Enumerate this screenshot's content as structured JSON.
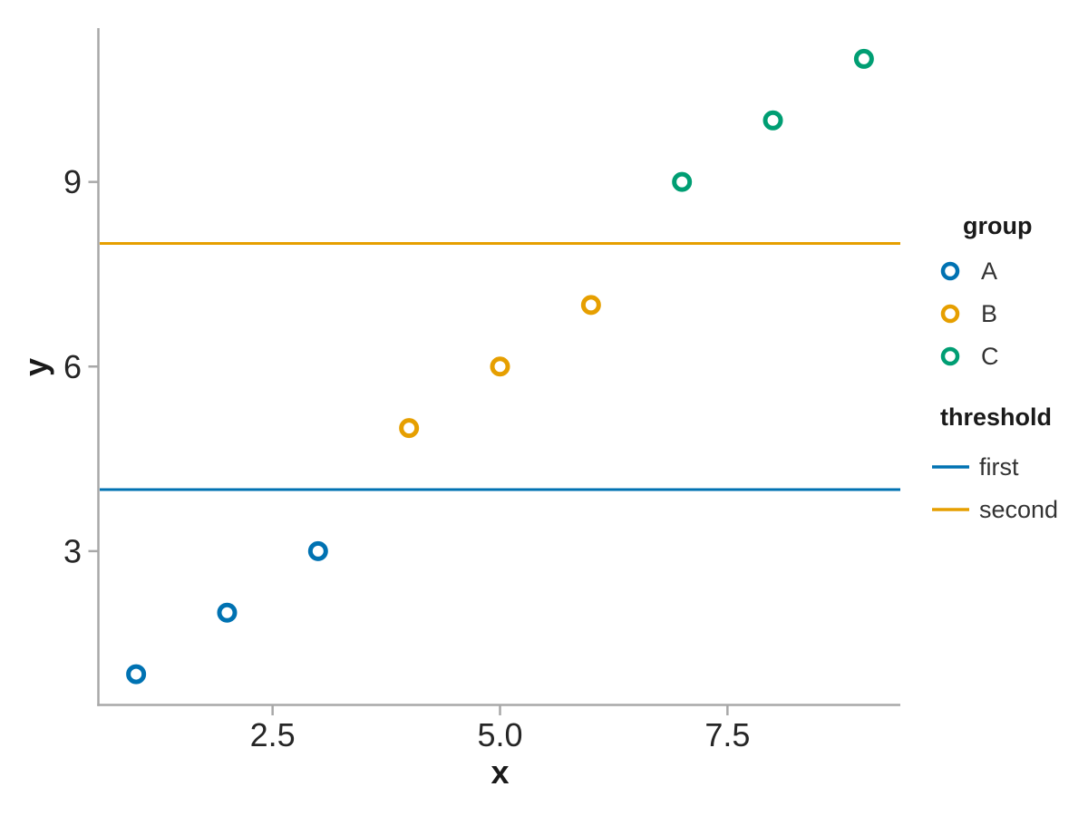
{
  "chart_data": {
    "type": "scatter",
    "title": "",
    "xlabel": "x",
    "ylabel": "y",
    "xlim": [
      0.6,
      9.4
    ],
    "ylim": [
      0.5,
      11.5
    ],
    "grid": false,
    "marker_style": "open-circle",
    "xticks": {
      "values": [
        2.5,
        5.0,
        7.5
      ],
      "labels": [
        "2.5",
        "5.0",
        "7.5"
      ]
    },
    "yticks": {
      "values": [
        3,
        6,
        9
      ],
      "labels": [
        "3",
        "6",
        "9"
      ]
    },
    "series": [
      {
        "name": "A",
        "color": "#0072b2",
        "points": [
          [
            1,
            1
          ],
          [
            2,
            2
          ],
          [
            3,
            3
          ]
        ]
      },
      {
        "name": "B",
        "color": "#e69f00",
        "points": [
          [
            4,
            5
          ],
          [
            5,
            6
          ],
          [
            6,
            7
          ]
        ]
      },
      {
        "name": "C",
        "color": "#009e73",
        "points": [
          [
            7,
            9
          ],
          [
            8,
            10
          ],
          [
            9,
            11
          ]
        ]
      }
    ],
    "thresholds": [
      {
        "name": "first",
        "value": 4,
        "color": "#0072b2"
      },
      {
        "name": "second",
        "value": 8,
        "color": "#e69f00"
      }
    ],
    "legend": {
      "position": "right",
      "group_title": "group",
      "threshold_title": "threshold"
    },
    "style_colors": {
      "axis": "#a8a8a8",
      "tick_text": "#262626",
      "title_text": "#1a1a1a",
      "background": "#ffffff"
    }
  }
}
